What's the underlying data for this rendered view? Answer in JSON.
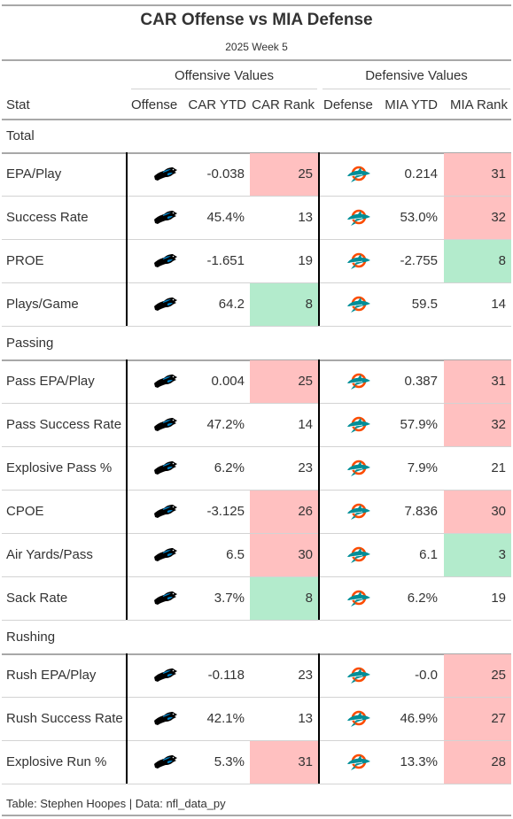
{
  "title": "CAR Offense vs MIA Defense",
  "subtitle": "2025 Week 5",
  "spanners": {
    "offense": "Offensive Values",
    "defense": "Defensive Values"
  },
  "columns": [
    "Stat",
    "Offense",
    "CAR YTD",
    "CAR Rank",
    "Defense",
    "MIA YTD",
    "MIA Rank"
  ],
  "footer": "Table: Stephen Hoopes | Data: nfl_data_py",
  "colors": {
    "bad": "#ffc0c0",
    "good": "#b3ebcc",
    "car_blue": "#0085ca",
    "mia_aqua": "#008e97",
    "mia_orange": "#fc4c02"
  },
  "offense_logo": "panther-logo-icon",
  "defense_logo": "dolphin-logo-icon",
  "chart_data": {
    "type": "table",
    "groups": [
      {
        "name": "Total",
        "rows": [
          {
            "stat": "EPA/Play",
            "car_ytd": "-0.038",
            "car_rank": "25",
            "car_color": "bad",
            "mia_ytd": "0.214",
            "mia_rank": "31",
            "mia_color": "bad"
          },
          {
            "stat": "Success Rate",
            "car_ytd": "45.4%",
            "car_rank": "13",
            "car_color": "",
            "mia_ytd": "53.0%",
            "mia_rank": "32",
            "mia_color": "bad"
          },
          {
            "stat": "PROE",
            "car_ytd": "-1.651",
            "car_rank": "19",
            "car_color": "",
            "mia_ytd": "-2.755",
            "mia_rank": "8",
            "mia_color": "good"
          },
          {
            "stat": "Plays/Game",
            "car_ytd": "64.2",
            "car_rank": "8",
            "car_color": "good",
            "mia_ytd": "59.5",
            "mia_rank": "14",
            "mia_color": ""
          }
        ]
      },
      {
        "name": "Passing",
        "rows": [
          {
            "stat": "Pass EPA/Play",
            "car_ytd": "0.004",
            "car_rank": "25",
            "car_color": "bad",
            "mia_ytd": "0.387",
            "mia_rank": "31",
            "mia_color": "bad"
          },
          {
            "stat": "Pass Success Rate",
            "car_ytd": "47.2%",
            "car_rank": "14",
            "car_color": "",
            "mia_ytd": "57.9%",
            "mia_rank": "32",
            "mia_color": "bad"
          },
          {
            "stat": "Explosive Pass %",
            "car_ytd": "6.2%",
            "car_rank": "23",
            "car_color": "",
            "mia_ytd": "7.9%",
            "mia_rank": "21",
            "mia_color": ""
          },
          {
            "stat": "CPOE",
            "car_ytd": "-3.125",
            "car_rank": "26",
            "car_color": "bad",
            "mia_ytd": "7.836",
            "mia_rank": "30",
            "mia_color": "bad"
          },
          {
            "stat": "Air Yards/Pass",
            "car_ytd": "6.5",
            "car_rank": "30",
            "car_color": "bad",
            "mia_ytd": "6.1",
            "mia_rank": "3",
            "mia_color": "good"
          },
          {
            "stat": "Sack Rate",
            "car_ytd": "3.7%",
            "car_rank": "8",
            "car_color": "good",
            "mia_ytd": "6.2%",
            "mia_rank": "19",
            "mia_color": ""
          }
        ]
      },
      {
        "name": "Rushing",
        "rows": [
          {
            "stat": "Rush EPA/Play",
            "car_ytd": "-0.118",
            "car_rank": "23",
            "car_color": "",
            "mia_ytd": "-0.0",
            "mia_rank": "25",
            "mia_color": "bad"
          },
          {
            "stat": "Rush Success Rate",
            "car_ytd": "42.1%",
            "car_rank": "13",
            "car_color": "",
            "mia_ytd": "46.9%",
            "mia_rank": "27",
            "mia_color": "bad"
          },
          {
            "stat": "Explosive Run %",
            "car_ytd": "5.3%",
            "car_rank": "31",
            "car_color": "bad",
            "mia_ytd": "13.3%",
            "mia_rank": "28",
            "mia_color": "bad"
          }
        ]
      }
    ]
  }
}
